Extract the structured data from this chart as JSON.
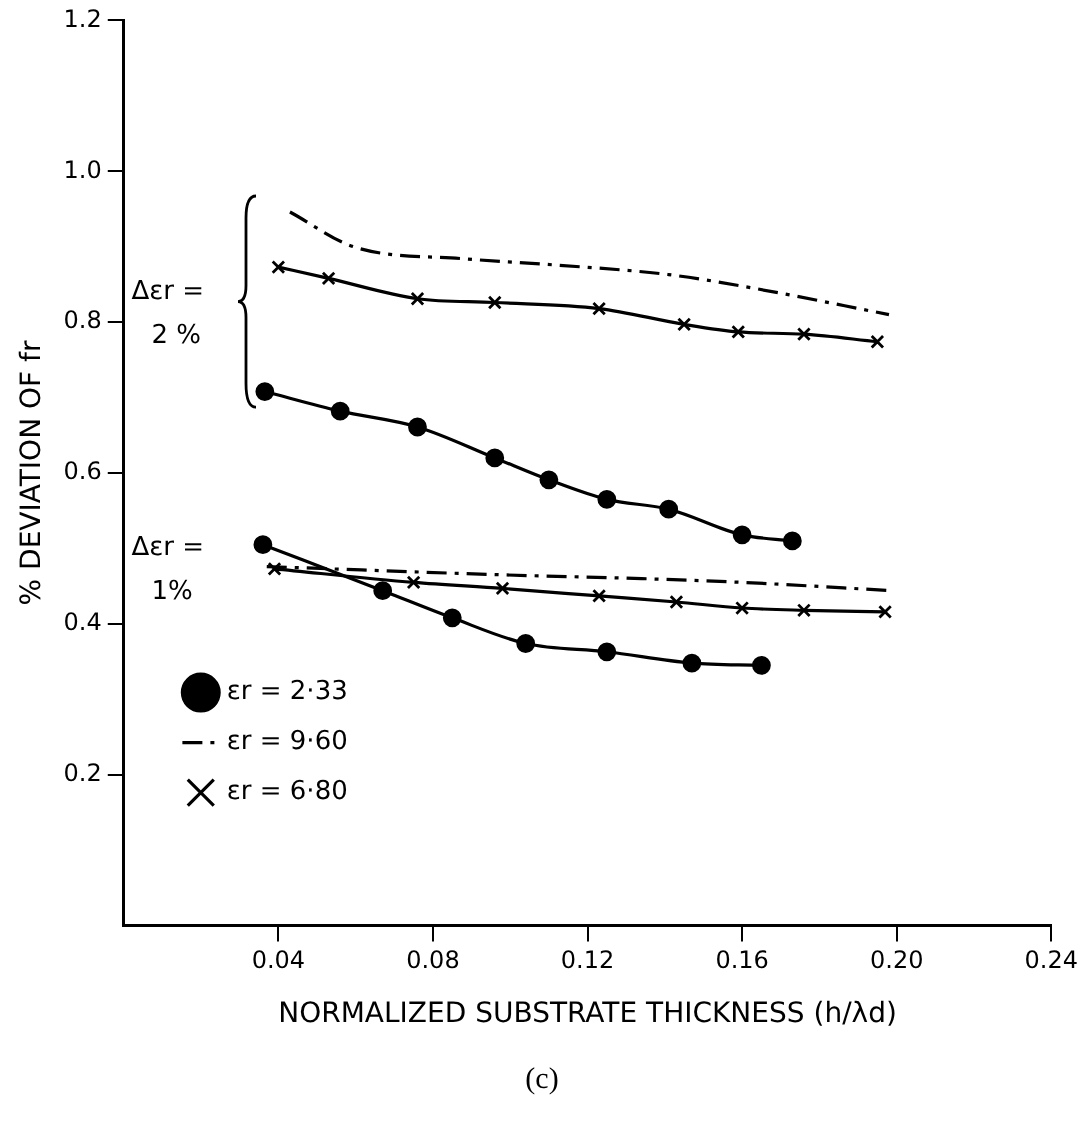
{
  "chart_data": {
    "type": "line",
    "xlabel": "NORMALIZED SUBSTRATE THICKNESS (h/λd)",
    "ylabel": "% DEVIATION OF fr",
    "xlim": [
      0,
      0.24
    ],
    "xticks": [
      {
        "value": 0.04,
        "label": "0.04"
      },
      {
        "value": 0.08,
        "label": "0.08"
      },
      {
        "value": 0.12,
        "label": "0.12"
      },
      {
        "value": 0.16,
        "label": "0.16"
      },
      {
        "value": 0.2,
        "label": "0.20"
      },
      {
        "value": 0.24,
        "label": "0.24"
      }
    ],
    "ylim": [
      0,
      1.2
    ],
    "yticks": [
      {
        "value": 0.2,
        "label": "0.2"
      },
      {
        "value": 0.4,
        "label": "0.4"
      },
      {
        "value": 0.6,
        "label": "0.6"
      },
      {
        "value": 0.8,
        "label": "0.8"
      },
      {
        "value": 1.0,
        "label": "1.0"
      },
      {
        "value": 1.2,
        "label": "1.2"
      }
    ],
    "grid": false,
    "legend": "bottom left",
    "annotations": [
      "Δεr =\n2 %",
      "Δεr =\n1%",
      "(c)"
    ],
    "series": [
      {
        "name": "εr = 2·33",
        "color": "#000000",
        "marker": "circle",
        "line_style": "solid",
        "x": [
          0.0365,
          0.056,
          0.076,
          0.096,
          0.11,
          0.125,
          0.141,
          0.16,
          0.173
        ],
        "values": [
          0.708,
          0.682,
          0.661,
          0.62,
          0.591,
          0.565,
          0.552,
          0.518,
          0.51
        ]
      },
      {
        "name": "εr = 9·60",
        "color": "#000000",
        "marker": "none",
        "line_style": "dashed",
        "x": [
          0.043,
          0.06,
          0.088,
          0.111,
          0.141,
          0.164,
          0.198
        ],
        "values": [
          0.946,
          0.899,
          0.884,
          0.876,
          0.863,
          0.844,
          0.81
        ]
      },
      {
        "name": "εr = 6·80",
        "color": "#000000",
        "marker": "cross",
        "line_style": "solid",
        "x": [
          0.04,
          0.053,
          0.076,
          0.096,
          0.123,
          0.145,
          0.159,
          0.176,
          0.195
        ],
        "values": [
          0.873,
          0.858,
          0.831,
          0.826,
          0.818,
          0.797,
          0.787,
          0.784,
          0.774
        ]
      },
      {
        "color": "#000000",
        "marker": "circle",
        "line_style": "solid",
        "x": [
          0.036,
          0.067,
          0.085,
          0.104,
          0.125,
          0.147,
          0.165
        ],
        "values": [
          0.505,
          0.444,
          0.408,
          0.374,
          0.363,
          0.348,
          0.345
        ]
      },
      {
        "color": "#000000",
        "marker": "none",
        "line_style": "dashed",
        "x": [
          0.037,
          0.098,
          0.134,
          0.16,
          0.199
        ],
        "values": [
          0.476,
          0.465,
          0.46,
          0.455,
          0.444
        ]
      },
      {
        "color": "#000000",
        "marker": "cross",
        "line_style": "solid",
        "x": [
          0.039,
          0.075,
          0.098,
          0.123,
          0.143,
          0.16,
          0.176,
          0.197
        ],
        "values": [
          0.473,
          0.455,
          0.447,
          0.437,
          0.429,
          0.421,
          0.418,
          0.416
        ]
      }
    ]
  }
}
